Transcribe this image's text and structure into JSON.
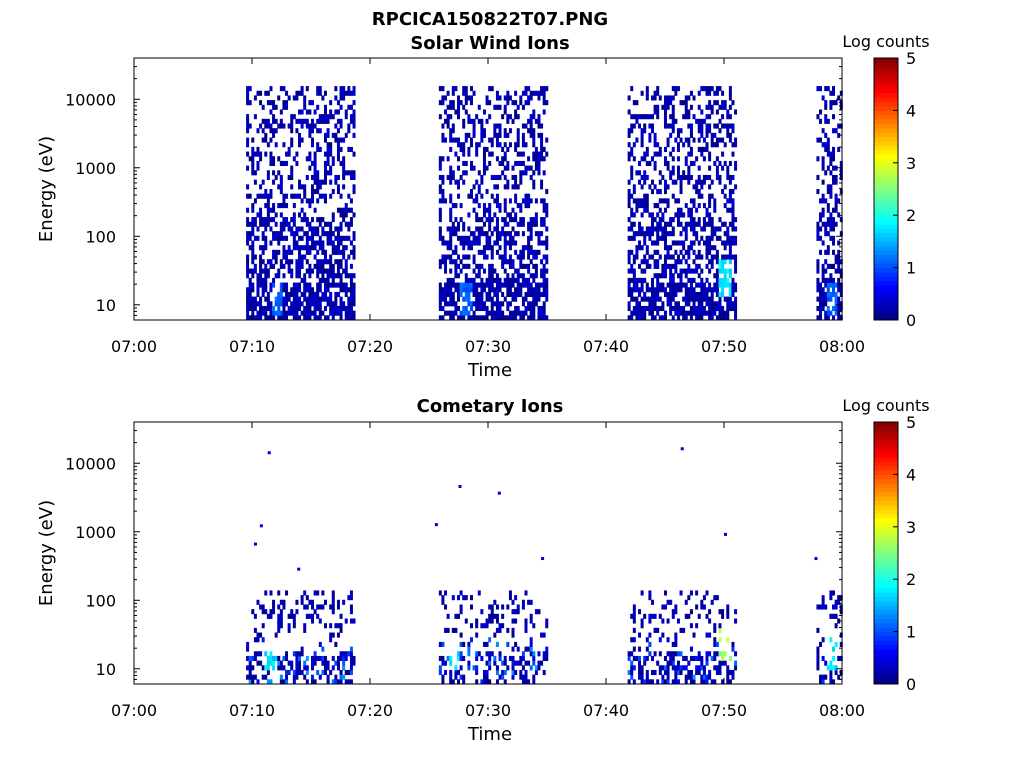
{
  "figure": {
    "title": "RPCICA150822T07.PNG"
  },
  "colormap": {
    "name": "jet",
    "stops": [
      "#00007f",
      "#0000ff",
      "#0080ff",
      "#00ffff",
      "#80ff80",
      "#ffff00",
      "#ff8000",
      "#ff0000",
      "#7f0000"
    ]
  },
  "chart_data": [
    {
      "type": "heatmap",
      "title": "Solar Wind Ions",
      "xlabel": "Time",
      "ylabel": "Energy (eV)",
      "x_range": [
        "07:00",
        "08:00"
      ],
      "x_ticks": [
        "07:00",
        "07:10",
        "07:20",
        "07:30",
        "07:40",
        "07:50",
        "08:00"
      ],
      "y_scale": "log",
      "y_range": [
        6,
        40000
      ],
      "y_ticks": [
        10,
        100,
        1000,
        10000
      ],
      "y_tick_labels": [
        "10",
        "100",
        "1000",
        "10000"
      ],
      "colorbar": {
        "label": "Log counts",
        "range": [
          0,
          5
        ],
        "ticks": [
          "0",
          "1",
          "2",
          "3",
          "4",
          "5"
        ]
      },
      "bursts": [
        {
          "start": "07:09:30",
          "end": "07:18:40",
          "max_energy_eV": 15000,
          "peak_log_counts": 1.2,
          "peak_time": "07:12:00",
          "peak_energy_eV": 12
        },
        {
          "start": "07:25:50",
          "end": "07:35:00",
          "max_energy_eV": 15000,
          "peak_log_counts": 1.2,
          "peak_time": "07:28:00",
          "peak_energy_eV": 12
        },
        {
          "start": "07:41:50",
          "end": "07:51:00",
          "max_energy_eV": 15000,
          "peak_log_counts": 2.0,
          "peak_time": "07:50:00",
          "peak_energy_eV": 25
        },
        {
          "start": "07:57:50",
          "end": "08:00:30",
          "max_energy_eV": 15000,
          "peak_log_counts": 1.2,
          "peak_time": "07:59:00",
          "peak_energy_eV": 12
        }
      ]
    },
    {
      "type": "heatmap",
      "title": "Cometary Ions",
      "xlabel": "Time",
      "ylabel": "Energy (eV)",
      "x_range": [
        "07:00",
        "08:00"
      ],
      "x_ticks": [
        "07:00",
        "07:10",
        "07:20",
        "07:30",
        "07:40",
        "07:50",
        "08:00"
      ],
      "y_scale": "log",
      "y_range": [
        6,
        40000
      ],
      "y_ticks": [
        10,
        100,
        1000,
        10000
      ],
      "y_tick_labels": [
        "10",
        "100",
        "1000",
        "10000"
      ],
      "colorbar": {
        "label": "Log counts",
        "range": [
          0,
          5
        ],
        "ticks": [
          "0",
          "1",
          "2",
          "3",
          "4",
          "5"
        ]
      },
      "bursts": [
        {
          "start": "07:09:30",
          "end": "07:18:40",
          "max_energy_eV": 140,
          "peak_log_counts": 1.9,
          "peak_time": "07:11:30",
          "peak_energy_eV": 16
        },
        {
          "start": "07:25:50",
          "end": "07:35:00",
          "max_energy_eV": 140,
          "peak_log_counts": 1.9,
          "peak_time": "07:27:00",
          "peak_energy_eV": 16
        },
        {
          "start": "07:41:50",
          "end": "07:51:00",
          "max_energy_eV": 140,
          "peak_log_counts": 2.9,
          "peak_time": "07:50:00",
          "peak_energy_eV": 22
        },
        {
          "start": "07:57:50",
          "end": "08:00:00",
          "max_energy_eV": 140,
          "peak_log_counts": 2.0,
          "peak_time": "07:59:00",
          "peak_energy_eV": 16
        }
      ],
      "isolated_points": [
        {
          "time": "07:11:20",
          "energy_eV": 14000
        },
        {
          "time": "07:10:40",
          "energy_eV": 1200
        },
        {
          "time": "07:10:10",
          "energy_eV": 650
        },
        {
          "time": "07:13:50",
          "energy_eV": 280
        },
        {
          "time": "07:25:30",
          "energy_eV": 1250
        },
        {
          "time": "07:27:30",
          "energy_eV": 4500
        },
        {
          "time": "07:30:50",
          "energy_eV": 3600
        },
        {
          "time": "07:34:30",
          "energy_eV": 400
        },
        {
          "time": "07:46:20",
          "energy_eV": 16000
        },
        {
          "time": "07:50:00",
          "energy_eV": 900
        },
        {
          "time": "07:57:40",
          "energy_eV": 400
        }
      ]
    }
  ]
}
